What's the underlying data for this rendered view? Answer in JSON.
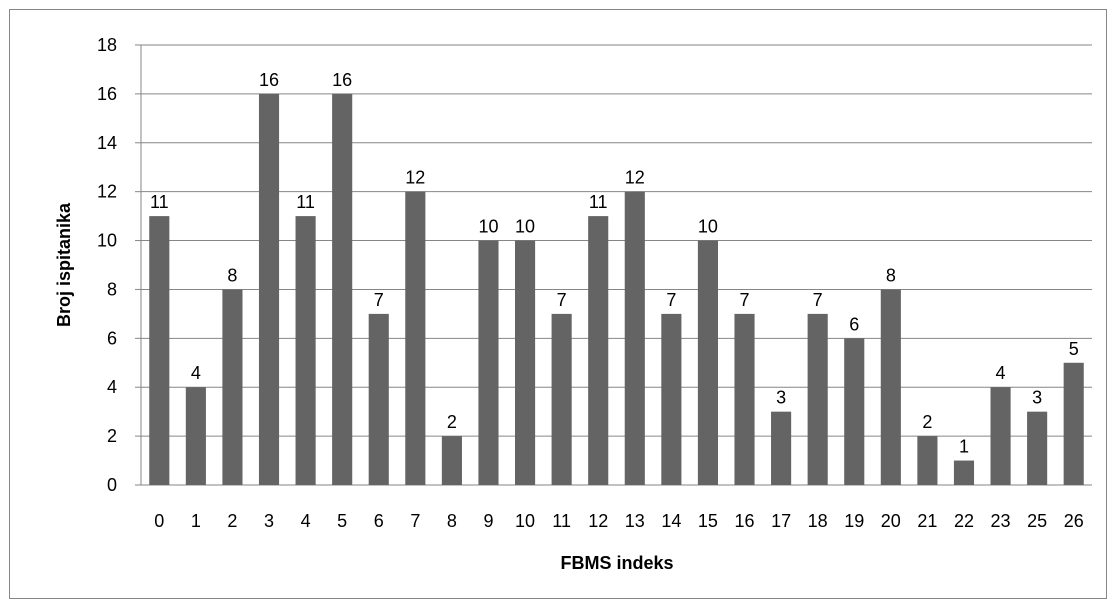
{
  "chart_data": {
    "type": "bar",
    "title": "",
    "xlabel": "FBMS indeks",
    "ylabel": "Broj ispitanika",
    "categories": [
      "0",
      "1",
      "2",
      "3",
      "4",
      "5",
      "6",
      "7",
      "8",
      "9",
      "10",
      "11",
      "12",
      "13",
      "14",
      "15",
      "16",
      "17",
      "18",
      "19",
      "20",
      "21",
      "22",
      "23",
      "25",
      "26"
    ],
    "values": [
      11,
      4,
      8,
      16,
      11,
      16,
      7,
      12,
      2,
      10,
      10,
      7,
      11,
      12,
      7,
      10,
      7,
      3,
      7,
      6,
      8,
      2,
      1,
      4,
      3,
      5
    ],
    "ylim": [
      0,
      18
    ],
    "yticks": [
      0,
      2,
      4,
      6,
      8,
      10,
      12,
      14,
      16,
      18
    ],
    "grid": true,
    "legend": "none",
    "data_labels": true,
    "colors": {
      "bar": "#646464",
      "grid": "#868686",
      "frame": "#868686"
    }
  }
}
